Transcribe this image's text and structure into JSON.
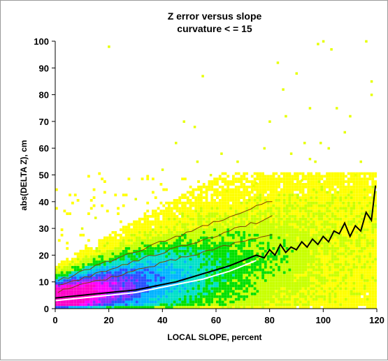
{
  "chart_data": {
    "type": "heatmap",
    "title": "Z error versus slope",
    "subtitle": "curvature < = 15",
    "xlabel": "LOCAL SLOPE, percent",
    "ylabel": "abs(DELTA Z), cm",
    "xlim": [
      0,
      120
    ],
    "ylim": [
      0,
      100
    ],
    "x_ticks": [
      "0",
      "20",
      "40",
      "60",
      "80",
      "100",
      "120"
    ],
    "y_ticks": [
      "0",
      "10",
      "20",
      "30",
      "40",
      "50",
      "60",
      "70",
      "80",
      "90",
      "100"
    ],
    "grid": false,
    "legend": "none",
    "density_colors": [
      "#ffff00",
      "#c8ff00",
      "#00e000",
      "#00e0c8",
      "#00b4ff",
      "#2850ff",
      "#8c28ff",
      "#ff00ff",
      "#ff00c8"
    ],
    "contour_color": "#804000",
    "mean_line": {
      "color": "#000000",
      "x": [
        0,
        5,
        10,
        15,
        20,
        25,
        30,
        35,
        40,
        45,
        50,
        55,
        60,
        65,
        70,
        75,
        78,
        80,
        82,
        84,
        86,
        88,
        90,
        92,
        94,
        96,
        98,
        100,
        102,
        104,
        106,
        108,
        110,
        112,
        114,
        116,
        118,
        119.5
      ],
      "y": [
        4,
        4.5,
        5,
        5.5,
        6,
        6.5,
        7,
        8,
        9,
        10,
        11.5,
        13,
        14.5,
        16,
        18,
        20,
        19,
        22,
        20,
        24,
        21,
        23,
        22,
        25,
        23,
        26,
        24,
        27,
        25,
        29,
        28,
        32,
        27,
        31,
        29,
        36,
        33,
        46
      ]
    },
    "median_line": {
      "color": "#ffffff",
      "x": [
        0,
        5,
        10,
        15,
        20,
        25,
        30,
        35,
        40,
        45,
        50,
        55,
        60,
        65,
        70,
        75
      ],
      "y": [
        3,
        3.5,
        4,
        4.5,
        5,
        5.5,
        6,
        7,
        8,
        9,
        10,
        11,
        12.5,
        14,
        16,
        18
      ]
    },
    "outliers": {
      "x": [
        20,
        48,
        52,
        55,
        45,
        53,
        40,
        58,
        62,
        68,
        75,
        78,
        80,
        83,
        85,
        88,
        90,
        93,
        95,
        97,
        98,
        100,
        102,
        105,
        108,
        110,
        112,
        114,
        116,
        118,
        118,
        103,
        99,
        95,
        92,
        86,
        74,
        64,
        30,
        15,
        10
      ],
      "y": [
        98,
        70,
        68,
        87,
        62,
        55,
        52,
        50,
        58,
        55,
        47,
        60,
        70,
        92,
        82,
        58,
        88,
        62,
        75,
        55,
        99,
        100,
        60,
        75,
        66,
        72,
        50,
        55,
        100,
        85,
        80,
        97,
        62,
        56,
        48,
        72,
        46,
        44,
        41,
        34,
        30
      ]
    }
  }
}
